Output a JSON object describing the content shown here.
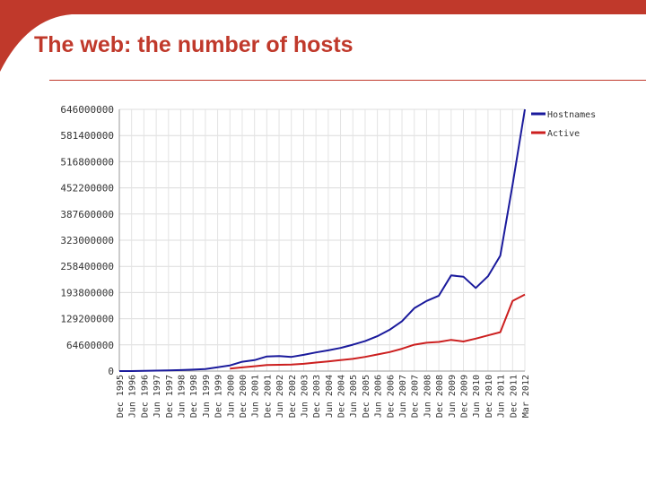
{
  "slide": {
    "title": "The web:  the number of hosts",
    "accent_color": "#c0392b"
  },
  "chart_data": {
    "type": "line",
    "title": "",
    "xlabel": "",
    "ylabel": "",
    "ylim": [
      0,
      646000000
    ],
    "y_ticks": [
      "646000000",
      "581400000",
      "516800000",
      "452200000",
      "387600000",
      "323000000",
      "258400000",
      "193800000",
      "129200000",
      "64600000",
      "0"
    ],
    "x_ticks": [
      "Dec 1995",
      "Jun 1996",
      "Dec 1996",
      "Jun 1997",
      "Dec 1997",
      "Jun 1998",
      "Dec 1998",
      "Jun 1999",
      "Dec 1999",
      "Jun 2000",
      "Dec 2000",
      "Jun 2001",
      "Dec 2001",
      "Jun 2002",
      "Dec 2002",
      "Jun 2003",
      "Dec 2003",
      "Jun 2004",
      "Dec 2004",
      "Jun 2005",
      "Dec 2005",
      "Jun 2006",
      "Dec 2006",
      "Jun 2007",
      "Dec 2007",
      "Jun 2008",
      "Dec 2008",
      "Jun 2009",
      "Dec 2009",
      "Jun 2010",
      "Dec 2010",
      "Jun 2011",
      "Dec 2011",
      "Mar 2012"
    ],
    "grid": true,
    "legend_position": "top-right",
    "series": [
      {
        "name": "Hostnames",
        "color": "#1a1a9c",
        "points": [
          [
            0,
            0
          ],
          [
            1,
            100000
          ],
          [
            2,
            600000
          ],
          [
            3,
            1200000
          ],
          [
            4,
            1700000
          ],
          [
            5,
            2400000
          ],
          [
            6,
            3500000
          ],
          [
            7,
            5000000
          ],
          [
            8,
            9500000
          ],
          [
            9,
            14000000
          ],
          [
            10,
            23000000
          ],
          [
            11,
            27000000
          ],
          [
            12,
            36000000
          ],
          [
            13,
            37000000
          ],
          [
            14,
            35000000
          ],
          [
            15,
            40000000
          ],
          [
            16,
            46000000
          ],
          [
            17,
            51000000
          ],
          [
            18,
            57000000
          ],
          [
            19,
            65000000
          ],
          [
            20,
            74000000
          ],
          [
            21,
            86000000
          ],
          [
            22,
            102000000
          ],
          [
            23,
            123000000
          ],
          [
            24,
            155000000
          ],
          [
            25,
            173000000
          ],
          [
            26,
            186000000
          ],
          [
            27,
            236000000
          ],
          [
            28,
            233000000
          ],
          [
            29,
            205000000
          ],
          [
            30,
            234000000
          ],
          [
            31,
            285000000
          ],
          [
            32,
            460000000
          ],
          [
            33,
            646000000
          ]
        ]
      },
      {
        "name": "Active",
        "color": "#cc1f1f",
        "points": [
          [
            9,
            6000000
          ],
          [
            10,
            9000000
          ],
          [
            11,
            12000000
          ],
          [
            12,
            15000000
          ],
          [
            13,
            15500000
          ],
          [
            14,
            16000000
          ],
          [
            15,
            18000000
          ],
          [
            16,
            21000000
          ],
          [
            17,
            24000000
          ],
          [
            18,
            27000000
          ],
          [
            19,
            30000000
          ],
          [
            20,
            35000000
          ],
          [
            21,
            41000000
          ],
          [
            22,
            47000000
          ],
          [
            23,
            55000000
          ],
          [
            24,
            65000000
          ],
          [
            25,
            70000000
          ],
          [
            26,
            72000000
          ],
          [
            27,
            77000000
          ],
          [
            28,
            73000000
          ],
          [
            29,
            80000000
          ],
          [
            30,
            88000000
          ],
          [
            31,
            96000000
          ],
          [
            32,
            173000000
          ],
          [
            33,
            189000000
          ]
        ]
      }
    ]
  }
}
